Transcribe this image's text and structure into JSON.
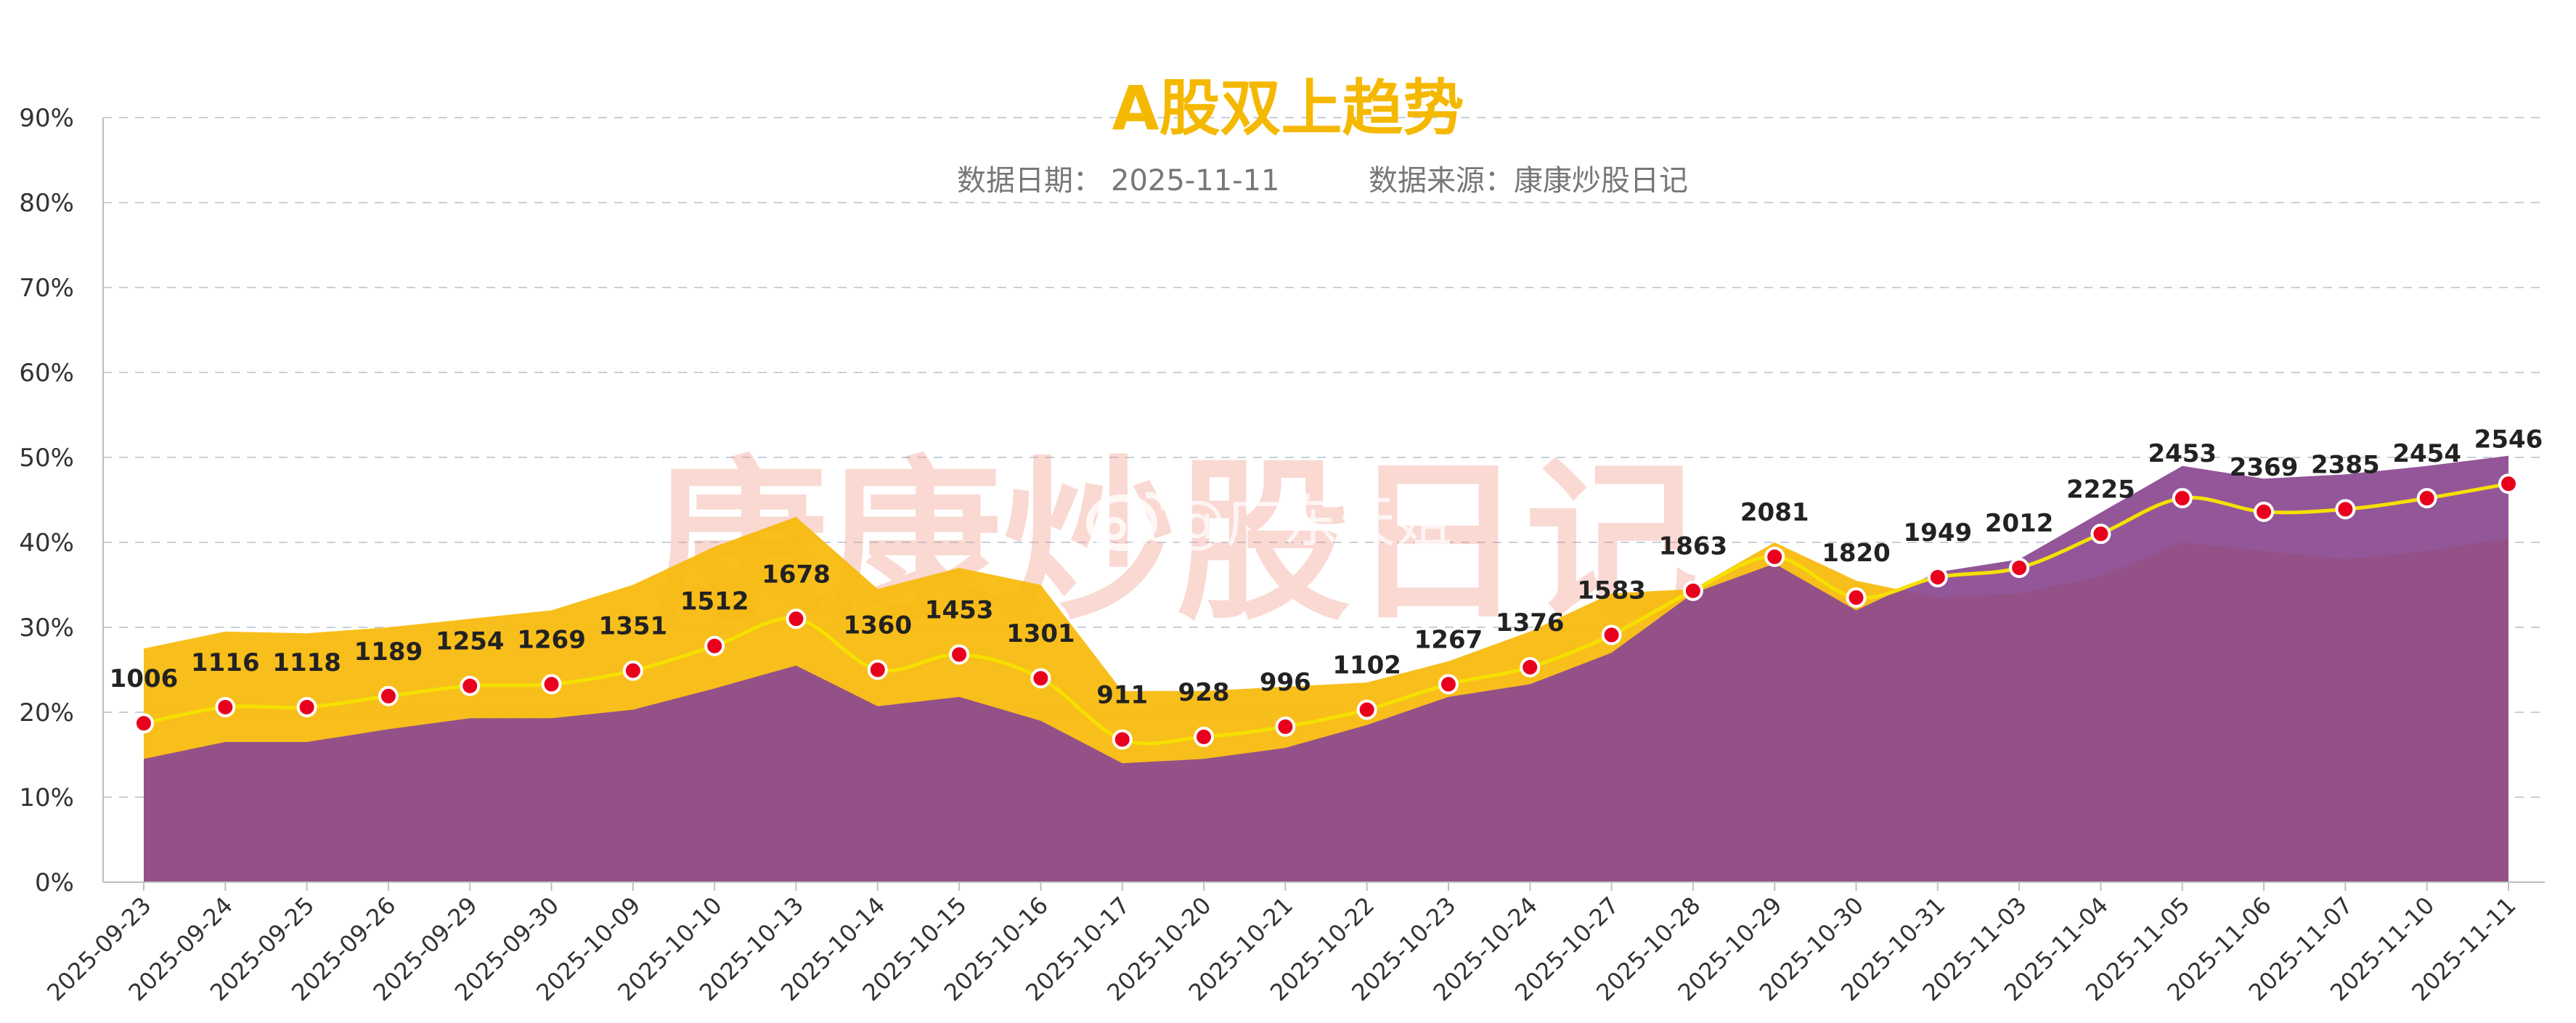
{
  "chart_data": {
    "type": "area",
    "title": "A股双上趋势",
    "subtitle_date_label": "数据日期：",
    "subtitle_date": "2025-11-11",
    "subtitle_source": "数据来源：康康炒股日记",
    "categories": [
      "2025-09-23",
      "2025-09-24",
      "2025-09-25",
      "2025-09-26",
      "2025-09-29",
      "2025-09-30",
      "2025-10-09",
      "2025-10-10",
      "2025-10-13",
      "2025-10-14",
      "2025-10-15",
      "2025-10-16",
      "2025-10-17",
      "2025-10-20",
      "2025-10-21",
      "2025-10-22",
      "2025-10-23",
      "2025-10-24",
      "2025-10-27",
      "2025-10-28",
      "2025-10-29",
      "2025-10-30",
      "2025-10-31",
      "2025-11-03",
      "2025-11-04",
      "2025-11-05",
      "2025-11-06",
      "2025-11-07",
      "2025-11-10",
      "2025-11-11"
    ],
    "ylim": [
      0,
      90
    ],
    "yticks": [
      0,
      10,
      20,
      30,
      40,
      50,
      60,
      70,
      80,
      90
    ],
    "ytick_labels": [
      "0%",
      "10%",
      "20%",
      "30%",
      "40%",
      "50%",
      "60%",
      "70%",
      "80%",
      "90%"
    ],
    "grid": true,
    "series": [
      {
        "type": "area",
        "color": "#f8bb0f",
        "values": [
          27.5,
          29.5,
          29.3,
          30.0,
          31.0,
          32.0,
          35.0,
          39.5,
          43.0,
          34.5,
          37.0,
          35.0,
          22.5,
          22.5,
          23.0,
          23.5,
          26.0,
          29.5,
          34.0,
          34.5,
          40.0,
          35.5,
          33.5,
          34.0,
          36.0,
          40.0,
          39.0,
          38.0,
          39.0,
          40.5
        ]
      },
      {
        "type": "area",
        "color": "#8a4890",
        "values": [
          14.5,
          16.5,
          16.5,
          18.0,
          19.3,
          19.3,
          20.3,
          22.8,
          25.5,
          20.7,
          21.8,
          19.0,
          14.0,
          14.5,
          15.8,
          18.5,
          21.8,
          23.3,
          27.0,
          34.0,
          37.5,
          32.0,
          36.5,
          38.0,
          43.5,
          49.0,
          47.5,
          48.0,
          49.0,
          50.2
        ]
      },
      {
        "type": "line",
        "color": "#f5e000",
        "marker_color": "#e8001c",
        "values": [
          18.7,
          20.6,
          20.6,
          21.9,
          23.1,
          23.3,
          24.9,
          27.8,
          31.0,
          25.0,
          26.8,
          24.0,
          16.8,
          17.1,
          18.3,
          20.3,
          23.3,
          25.3,
          29.1,
          34.3,
          38.3,
          33.5,
          35.9,
          37.0,
          41.0,
          45.2,
          43.6,
          43.9,
          45.2,
          46.9
        ]
      }
    ],
    "data_labels": [
      "1006",
      "1116",
      "1118",
      "1189",
      "1254",
      "1269",
      "1351",
      "1512",
      "1678",
      "1360",
      "1453",
      "1301",
      "911",
      "928",
      "996",
      "1102",
      "1267",
      "1376",
      "1583",
      "1863",
      "2081",
      "1820",
      "1949",
      "2012",
      "2225",
      "2453",
      "2369",
      "2385",
      "2454",
      "2546"
    ],
    "watermark_text": "康康炒股日记",
    "watermark_handle": "@广东天姐"
  }
}
